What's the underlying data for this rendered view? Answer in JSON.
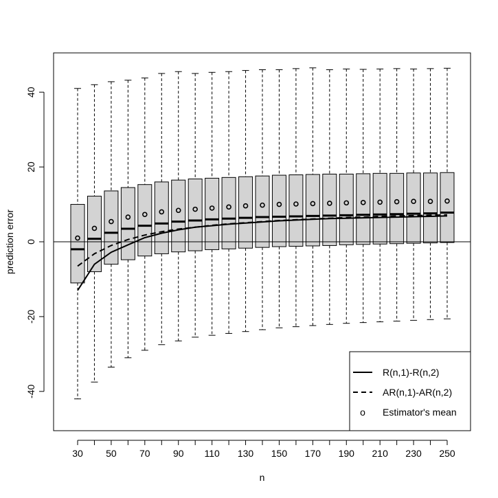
{
  "chart_data": {
    "type": "boxplot",
    "xlabel": "n",
    "ylabel": "prediction error",
    "xtick_labels": [
      "30",
      "50",
      "70",
      "90",
      "110",
      "130",
      "150",
      "170",
      "190",
      "210",
      "230",
      "250"
    ],
    "yticks": [
      -40,
      -20,
      0,
      20,
      40
    ],
    "ylim": [
      -50.5,
      50.5
    ],
    "reference_line": 0,
    "box_fill": "#d3d3d3",
    "boxes": [
      {
        "n": 30,
        "whisker_low": -42,
        "q1": -11,
        "median": -2,
        "q3": 10,
        "whisker_high": 41,
        "mean": 1
      },
      {
        "n": 40,
        "whisker_low": -37.5,
        "q1": -8,
        "median": 0.8,
        "q3": 12.2,
        "whisker_high": 42,
        "mean": 3.6
      },
      {
        "n": 50,
        "whisker_low": -33.5,
        "q1": -6,
        "median": 2.4,
        "q3": 13.6,
        "whisker_high": 42.8,
        "mean": 5.4
      },
      {
        "n": 60,
        "whisker_low": -31,
        "q1": -4.8,
        "median": 3.5,
        "q3": 14.5,
        "whisker_high": 43.2,
        "mean": 6.6
      },
      {
        "n": 70,
        "whisker_low": -29,
        "q1": -3.8,
        "median": 4.3,
        "q3": 15.3,
        "whisker_high": 43.8,
        "mean": 7.3
      },
      {
        "n": 80,
        "whisker_low": -27.5,
        "q1": -3.2,
        "median": 4.9,
        "q3": 16,
        "whisker_high": 45,
        "mean": 8
      },
      {
        "n": 90,
        "whisker_low": -26.5,
        "q1": -2.7,
        "median": 5.4,
        "q3": 16.5,
        "whisker_high": 45.5,
        "mean": 8.4
      },
      {
        "n": 100,
        "whisker_low": -25.5,
        "q1": -2.4,
        "median": 5.7,
        "q3": 16.8,
        "whisker_high": 45,
        "mean": 8.7
      },
      {
        "n": 110,
        "whisker_low": -25,
        "q1": -2.1,
        "median": 6,
        "q3": 17,
        "whisker_high": 45.3,
        "mean": 9
      },
      {
        "n": 120,
        "whisker_low": -24.5,
        "q1": -1.9,
        "median": 6.2,
        "q3": 17.2,
        "whisker_high": 45.5,
        "mean": 9.3
      },
      {
        "n": 130,
        "whisker_low": -24,
        "q1": -1.7,
        "median": 6.4,
        "q3": 17.4,
        "whisker_high": 45.8,
        "mean": 9.6
      },
      {
        "n": 140,
        "whisker_low": -23.5,
        "q1": -1.5,
        "median": 6.6,
        "q3": 17.6,
        "whisker_high": 46,
        "mean": 9.8
      },
      {
        "n": 150,
        "whisker_low": -23,
        "q1": -1.3,
        "median": 6.7,
        "q3": 17.8,
        "whisker_high": 46,
        "mean": 10
      },
      {
        "n": 160,
        "whisker_low": -22.7,
        "q1": -1.2,
        "median": 6.8,
        "q3": 17.9,
        "whisker_high": 46.3,
        "mean": 10.1
      },
      {
        "n": 170,
        "whisker_low": -22.4,
        "q1": -1.1,
        "median": 6.9,
        "q3": 18,
        "whisker_high": 46.5,
        "mean": 10.2
      },
      {
        "n": 180,
        "whisker_low": -22.1,
        "q1": -1,
        "median": 7,
        "q3": 18.1,
        "whisker_high": 46,
        "mean": 10.3
      },
      {
        "n": 190,
        "whisker_low": -21.8,
        "q1": -0.8,
        "median": 7.1,
        "q3": 18.1,
        "whisker_high": 46.2,
        "mean": 10.4
      },
      {
        "n": 200,
        "whisker_low": -21.6,
        "q1": -0.7,
        "median": 7.2,
        "q3": 18.2,
        "whisker_high": 46.1,
        "mean": 10.5
      },
      {
        "n": 210,
        "whisker_low": -21.4,
        "q1": -0.6,
        "median": 7.3,
        "q3": 18.3,
        "whisker_high": 46.2,
        "mean": 10.6
      },
      {
        "n": 220,
        "whisker_low": -21.2,
        "q1": -0.5,
        "median": 7.4,
        "q3": 18.3,
        "whisker_high": 46.3,
        "mean": 10.7
      },
      {
        "n": 230,
        "whisker_low": -21,
        "q1": -0.4,
        "median": 7.5,
        "q3": 18.4,
        "whisker_high": 46.2,
        "mean": 10.8
      },
      {
        "n": 240,
        "whisker_low": -20.8,
        "q1": -0.3,
        "median": 7.6,
        "q3": 18.4,
        "whisker_high": 46.3,
        "mean": 10.8
      },
      {
        "n": 250,
        "whisker_low": -20.6,
        "q1": -0.2,
        "median": 7.8,
        "q3": 18.5,
        "whisker_high": 46.4,
        "mean": 10.9
      }
    ],
    "series": [
      {
        "name": "R(n,1)-R(n,2)",
        "style": "solid",
        "x": [
          30,
          40,
          50,
          60,
          70,
          80,
          90,
          100,
          110,
          120,
          130,
          140,
          150,
          160,
          170,
          180,
          190,
          200,
          210,
          220,
          230,
          240,
          250
        ],
        "y": [
          -13,
          -6,
          -2.8,
          -0.8,
          1.1,
          2.3,
          3.2,
          3.9,
          4.3,
          4.7,
          5,
          5.3,
          5.6,
          5.8,
          6,
          6.2,
          6.3,
          6.4,
          6.5,
          6.6,
          6.7,
          6.8,
          6.9
        ]
      },
      {
        "name": "AR(n,1)-AR(n,2)",
        "style": "dashed",
        "x": [
          30,
          40,
          50,
          60,
          70,
          80,
          90,
          100,
          110,
          120,
          130,
          140,
          150,
          160,
          170,
          180,
          190,
          200,
          210,
          220,
          230,
          240,
          250
        ],
        "y": [
          -6.5,
          -3.2,
          -1,
          0.6,
          1.8,
          2.7,
          3.4,
          3.9,
          4.4,
          4.8,
          5.1,
          5.4,
          5.7,
          5.9,
          6.1,
          6.3,
          6.5,
          6.6,
          6.8,
          6.9,
          7,
          7.1,
          7.2
        ]
      }
    ],
    "legend": {
      "position": "bottom-right",
      "entries": [
        {
          "label": "R(n,1)-R(n,2)",
          "symbol": "solid-line"
        },
        {
          "label": "AR(n,1)-AR(n,2)",
          "symbol": "dashed-line"
        },
        {
          "label": "Estimator's mean",
          "symbol": "open-circle",
          "glyph": "o"
        }
      ]
    }
  }
}
